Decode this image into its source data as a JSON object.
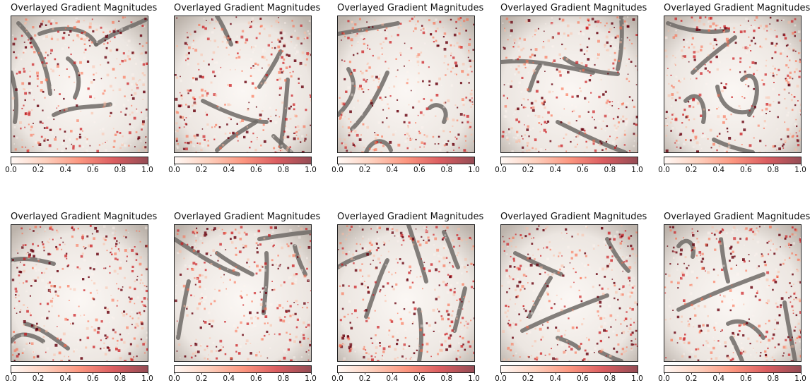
{
  "chart_data": {
    "type": "heatmap",
    "layout": "2 rows x 5 columns",
    "panel_count": 10,
    "panels": [
      {
        "title": "Overlayed Gradient Magnitudes"
      },
      {
        "title": "Overlayed Gradient Magnitudes"
      },
      {
        "title": "Overlayed Gradient Magnitudes"
      },
      {
        "title": "Overlayed Gradient Magnitudes"
      },
      {
        "title": "Overlayed Gradient Magnitudes"
      },
      {
        "title": "Overlayed Gradient Magnitudes"
      },
      {
        "title": "Overlayed Gradient Magnitudes"
      },
      {
        "title": "Overlayed Gradient Magnitudes"
      },
      {
        "title": "Overlayed Gradient Magnitudes"
      },
      {
        "title": "Overlayed Gradient Magnitudes"
      }
    ],
    "colorbar": {
      "orientation": "horizontal",
      "range": [
        0.0,
        1.0
      ],
      "ticks": [
        "0.0",
        "0.2",
        "0.4",
        "0.6",
        "0.8",
        "1.0"
      ],
      "colormap": "Reds",
      "colormap_stops": [
        "#fff5f0",
        "#fcbba1",
        "#fb6a4a",
        "#cb181d",
        "#67000d"
      ]
    },
    "overlay": {
      "background": "grayscale microscopy image of elongated worms",
      "overlay_alpha": 0.5
    },
    "axes_ticks_visible": false,
    "grid": false
  }
}
